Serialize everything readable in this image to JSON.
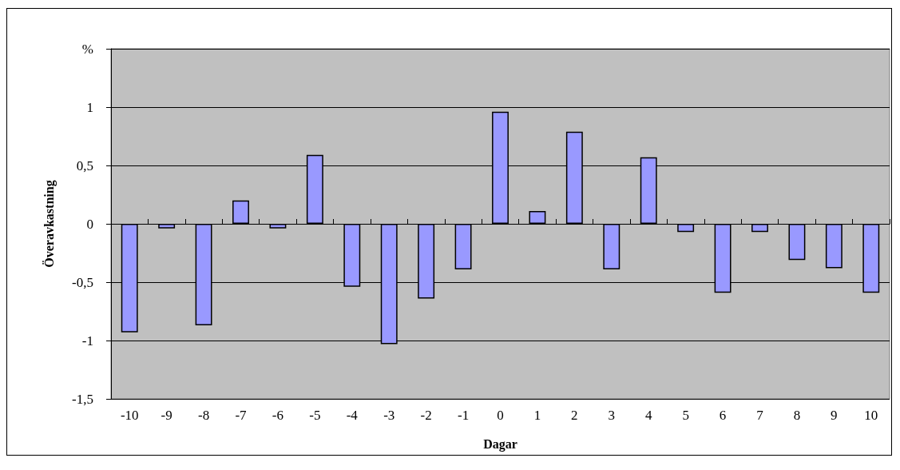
{
  "chart_data": {
    "type": "bar",
    "xlabel": "Dagar",
    "ylabel": "Överavkastning",
    "categories": [
      "-10",
      "-9",
      "-8",
      "-7",
      "-6",
      "-5",
      "-4",
      "-3",
      "-2",
      "-1",
      "0",
      "1",
      "2",
      "3",
      "4",
      "5",
      "6",
      "7",
      "8",
      "9",
      "10"
    ],
    "values": [
      -0.93,
      -0.04,
      -0.87,
      0.2,
      -0.04,
      0.59,
      -0.54,
      -1.03,
      -0.64,
      -0.39,
      0.96,
      0.11,
      0.79,
      -0.39,
      0.57,
      -0.07,
      -0.59,
      -0.07,
      -0.31,
      -0.38,
      -0.59
    ],
    "color": "#9999ff",
    "ylim": [
      -1.5,
      1.5
    ],
    "yticks": [
      {
        "value": -1.5,
        "label": "-1,5"
      },
      -1,
      {
        "value": -0.5,
        "label": "-0,5"
      },
      0,
      {
        "value": 0.5,
        "label": "0,5"
      },
      1,
      {
        "value": 1.5,
        "label": "%"
      }
    ],
    "grid": "y"
  }
}
